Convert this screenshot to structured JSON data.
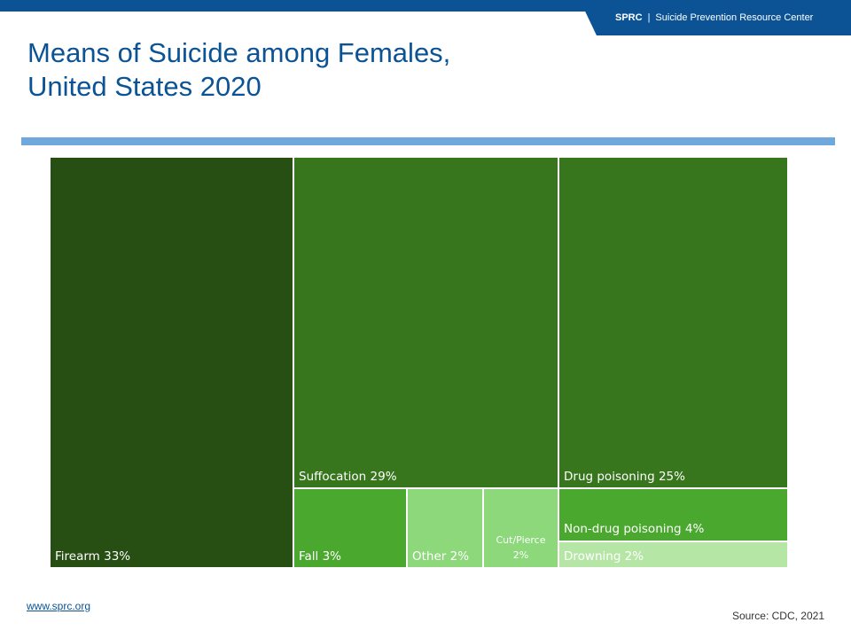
{
  "header": {
    "org_abbr": "SPRC",
    "separator": "|",
    "org_name": "Suicide Prevention Resource Center"
  },
  "title": {
    "line1": "Means of Suicide among Females,",
    "line2": "United States 2020"
  },
  "chart_data": {
    "type": "treemap",
    "title": "Means of Suicide among Females, United States 2020",
    "unit": "%",
    "items": [
      {
        "label": "Firearm",
        "value": 33,
        "display": "Firearm 33%",
        "color": "#274e13"
      },
      {
        "label": "Suffocation",
        "value": 29,
        "display": "Suffocation 29%",
        "color": "#38761d"
      },
      {
        "label": "Drug poisoning",
        "value": 25,
        "display": "Drug poisoning 25%",
        "color": "#38761d"
      },
      {
        "label": "Fall",
        "value": 3,
        "display": "Fall 3%",
        "color": "#4aa82e"
      },
      {
        "label": "Other",
        "value": 2,
        "display": "Other 2%",
        "color": "#8cd87a"
      },
      {
        "label": "Cut/Pierce",
        "value": 2,
        "display_line1": "Cut/Pierce",
        "display_line2": "2%",
        "color": "#8cd87a"
      },
      {
        "label": "Non-drug poisoning",
        "value": 4,
        "display": "Non-drug poisoning 4%",
        "color": "#4aa82e"
      },
      {
        "label": "Drowning",
        "value": 2,
        "display": "Drowning 2%",
        "color": "#b5e6a6"
      }
    ]
  },
  "footer": {
    "link": "www.sprc.org",
    "source": "Source: CDC, 2021"
  }
}
